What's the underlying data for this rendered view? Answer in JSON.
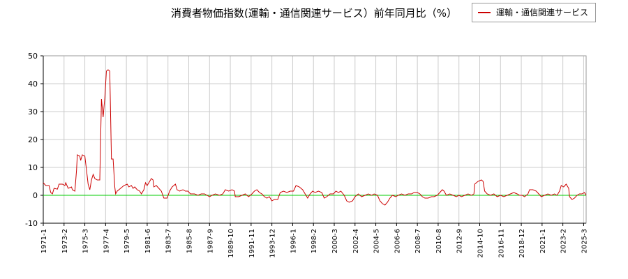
{
  "chart_data": {
    "type": "line",
    "title": "消費者物価指数(運輸・通信関連サービス）前年同月比（%）",
    "xlabel": "",
    "ylabel": "",
    "ylim": [
      -10,
      50
    ],
    "yticks": [
      -10,
      0,
      10,
      20,
      30,
      40,
      50
    ],
    "xlim": [
      "1971-1",
      "2025-6"
    ],
    "xticks": [
      "1971-1",
      "1973-2",
      "1975-3",
      "1977-4",
      "1979-5",
      "1981-6",
      "1983-7",
      "1985-8",
      "1987-9",
      "1989-10",
      "1991-11",
      "1993-12",
      "1996-1",
      "1998-2",
      "2000-3",
      "2002-4",
      "2004-5",
      "2006-6",
      "2008-7",
      "2010-8",
      "2012-9",
      "2014-10",
      "2016-11",
      "2018-12",
      "2021-1",
      "2023-2",
      "2025-3"
    ],
    "grid": true,
    "legend_position": "top-right",
    "reference_line": {
      "y": 0,
      "color": "#00cc00"
    },
    "series": [
      {
        "name": "運輸・通信関連サービス",
        "color": "#cc0000",
        "points": [
          [
            "1971-1",
            4.5
          ],
          [
            "1971-4",
            3.5
          ],
          [
            "1971-8",
            3.5
          ],
          [
            "1971-10",
            1.0
          ],
          [
            "1971-12",
            0.5
          ],
          [
            "1972-2",
            2.5
          ],
          [
            "1972-6",
            2.2
          ],
          [
            "1972-8",
            4.0
          ],
          [
            "1972-12",
            4.0
          ],
          [
            "1973-3",
            3.5
          ],
          [
            "1973-4",
            4.5
          ],
          [
            "1973-7",
            2.5
          ],
          [
            "1973-11",
            3.0
          ],
          [
            "1973-12",
            2.0
          ],
          [
            "1974-3",
            1.5
          ],
          [
            "1974-5",
            9.0
          ],
          [
            "1974-6",
            14.5
          ],
          [
            "1974-9",
            14.0
          ],
          [
            "1974-10",
            12.5
          ],
          [
            "1974-12",
            14.5
          ],
          [
            "1975-3",
            14.0
          ],
          [
            "1975-5",
            9.0
          ],
          [
            "1975-7",
            4.0
          ],
          [
            "1975-9",
            2.0
          ],
          [
            "1975-11",
            5.5
          ],
          [
            "1976-1",
            7.5
          ],
          [
            "1976-3",
            6.0
          ],
          [
            "1976-6",
            5.5
          ],
          [
            "1976-9",
            5.5
          ],
          [
            "1976-11",
            34.5
          ],
          [
            "1977-1",
            28.0
          ],
          [
            "1977-3",
            35.0
          ],
          [
            "1977-5",
            44.5
          ],
          [
            "1977-7",
            45.0
          ],
          [
            "1977-9",
            44.5
          ],
          [
            "1977-11",
            13.0
          ],
          [
            "1978-1",
            13.0
          ],
          [
            "1978-3",
            3.0
          ],
          [
            "1978-4",
            0.5
          ],
          [
            "1978-6",
            1.5
          ],
          [
            "1978-10",
            2.5
          ],
          [
            "1979-2",
            3.5
          ],
          [
            "1979-6",
            4.0
          ],
          [
            "1979-8",
            3.0
          ],
          [
            "1979-11",
            3.5
          ],
          [
            "1980-1",
            2.5
          ],
          [
            "1980-3",
            3.0
          ],
          [
            "1980-6",
            2.0
          ],
          [
            "1980-9",
            1.5
          ],
          [
            "1980-11",
            0.5
          ],
          [
            "1981-2",
            2.0
          ],
          [
            "1981-4",
            4.5
          ],
          [
            "1981-6",
            3.5
          ],
          [
            "1981-9",
            5.0
          ],
          [
            "1981-11",
            6.0
          ],
          [
            "1982-1",
            5.5
          ],
          [
            "1982-2",
            3.0
          ],
          [
            "1982-5",
            3.5
          ],
          [
            "1982-8",
            2.5
          ],
          [
            "1982-11",
            1.5
          ],
          [
            "1983-2",
            -1.0
          ],
          [
            "1983-6",
            -1.0
          ],
          [
            "1983-9",
            1.5
          ],
          [
            "1983-12",
            3.0
          ],
          [
            "1984-4",
            4.0
          ],
          [
            "1984-6",
            2.0
          ],
          [
            "1984-9",
            1.5
          ],
          [
            "1985-1",
            2.0
          ],
          [
            "1985-4",
            1.5
          ],
          [
            "1985-7",
            1.5
          ],
          [
            "1985-10",
            0.5
          ],
          [
            "1986-3",
            0.5
          ],
          [
            "1986-7",
            0.0
          ],
          [
            "1986-11",
            0.5
          ],
          [
            "1987-3",
            0.5
          ],
          [
            "1987-6",
            0.0
          ],
          [
            "1987-9",
            -0.5
          ],
          [
            "1987-12",
            0.0
          ],
          [
            "1988-4",
            0.5
          ],
          [
            "1988-9",
            0.0
          ],
          [
            "1989-1",
            0.5
          ],
          [
            "1989-4",
            2.0
          ],
          [
            "1989-8",
            1.5
          ],
          [
            "1989-12",
            2.0
          ],
          [
            "1990-3",
            1.5
          ],
          [
            "1990-4",
            -0.5
          ],
          [
            "1990-8",
            -0.5
          ],
          [
            "1990-12",
            0.0
          ],
          [
            "1991-4",
            0.5
          ],
          [
            "1991-8",
            -0.5
          ],
          [
            "1991-12",
            0.5
          ],
          [
            "1992-3",
            1.5
          ],
          [
            "1992-6",
            2.0
          ],
          [
            "1992-9",
            1.0
          ],
          [
            "1992-12",
            0.5
          ],
          [
            "1993-3",
            -0.5
          ],
          [
            "1993-6",
            -1.0
          ],
          [
            "1993-9",
            -0.5
          ],
          [
            "1993-12",
            -2.0
          ],
          [
            "1994-3",
            -1.5
          ],
          [
            "1994-7",
            -1.5
          ],
          [
            "1994-10",
            1.0
          ],
          [
            "1995-2",
            1.5
          ],
          [
            "1995-6",
            1.0
          ],
          [
            "1995-10",
            1.5
          ],
          [
            "1996-2",
            1.5
          ],
          [
            "1996-5",
            3.5
          ],
          [
            "1996-9",
            3.0
          ],
          [
            "1997-1",
            2.0
          ],
          [
            "1997-4",
            0.5
          ],
          [
            "1997-7",
            -1.0
          ],
          [
            "1997-10",
            0.5
          ],
          [
            "1998-1",
            1.5
          ],
          [
            "1998-4",
            1.0
          ],
          [
            "1998-8",
            1.5
          ],
          [
            "1998-12",
            1.0
          ],
          [
            "1999-3",
            -1.0
          ],
          [
            "1999-6",
            -0.5
          ],
          [
            "1999-10",
            0.5
          ],
          [
            "2000-2",
            0.5
          ],
          [
            "2000-5",
            1.5
          ],
          [
            "2000-8",
            1.0
          ],
          [
            "2000-11",
            1.5
          ],
          [
            "2001-3",
            0.0
          ],
          [
            "2001-6",
            -2.0
          ],
          [
            "2001-9",
            -2.5
          ],
          [
            "2002-1",
            -2.0
          ],
          [
            "2002-4",
            -0.5
          ],
          [
            "2002-8",
            0.5
          ],
          [
            "2002-12",
            -0.5
          ],
          [
            "2003-4",
            0.0
          ],
          [
            "2003-8",
            0.5
          ],
          [
            "2003-12",
            0.0
          ],
          [
            "2004-3",
            0.5
          ],
          [
            "2004-7",
            0.0
          ],
          [
            "2004-10",
            -2.0
          ],
          [
            "2005-1",
            -3.0
          ],
          [
            "2005-4",
            -3.5
          ],
          [
            "2005-7",
            -2.5
          ],
          [
            "2005-10",
            -1.0
          ],
          [
            "2006-1",
            0.0
          ],
          [
            "2006-5",
            -0.5
          ],
          [
            "2006-8",
            0.0
          ],
          [
            "2006-12",
            0.5
          ],
          [
            "2007-4",
            0.0
          ],
          [
            "2007-8",
            0.5
          ],
          [
            "2007-12",
            0.5
          ],
          [
            "2008-3",
            1.0
          ],
          [
            "2008-7",
            1.0
          ],
          [
            "2008-10",
            0.5
          ],
          [
            "2009-1",
            -0.5
          ],
          [
            "2009-4",
            -1.0
          ],
          [
            "2009-8",
            -1.0
          ],
          [
            "2009-12",
            -0.5
          ],
          [
            "2010-3",
            -0.5
          ],
          [
            "2010-7",
            0.0
          ],
          [
            "2010-10",
            1.0
          ],
          [
            "2011-1",
            2.0
          ],
          [
            "2011-3",
            1.5
          ],
          [
            "2011-6",
            0.0
          ],
          [
            "2011-10",
            0.5
          ],
          [
            "2012-2",
            0.0
          ],
          [
            "2012-6",
            -0.5
          ],
          [
            "2012-9",
            0.0
          ],
          [
            "2012-12",
            -0.5
          ],
          [
            "2013-4",
            0.0
          ],
          [
            "2013-8",
            0.5
          ],
          [
            "2013-12",
            0.0
          ],
          [
            "2014-3",
            0.5
          ],
          [
            "2014-4",
            4.0
          ],
          [
            "2014-8",
            5.0
          ],
          [
            "2014-12",
            5.5
          ],
          [
            "2015-2",
            5.0
          ],
          [
            "2015-4",
            1.5
          ],
          [
            "2015-7",
            0.5
          ],
          [
            "2015-11",
            0.0
          ],
          [
            "2016-3",
            0.5
          ],
          [
            "2016-7",
            -0.5
          ],
          [
            "2016-11",
            0.0
          ],
          [
            "2017-3",
            -0.5
          ],
          [
            "2017-7",
            0.0
          ],
          [
            "2017-11",
            0.5
          ],
          [
            "2018-3",
            1.0
          ],
          [
            "2018-7",
            0.5
          ],
          [
            "2018-10",
            0.0
          ],
          [
            "2019-1",
            0.0
          ],
          [
            "2019-4",
            -0.5
          ],
          [
            "2019-8",
            0.5
          ],
          [
            "2019-10",
            2.0
          ],
          [
            "2020-2",
            2.0
          ],
          [
            "2020-6",
            1.5
          ],
          [
            "2020-9",
            0.5
          ],
          [
            "2020-12",
            -0.5
          ],
          [
            "2021-4",
            0.0
          ],
          [
            "2021-8",
            0.5
          ],
          [
            "2021-12",
            0.0
          ],
          [
            "2022-4",
            0.5
          ],
          [
            "2022-7",
            0.0
          ],
          [
            "2022-10",
            1.5
          ],
          [
            "2022-12",
            3.5
          ],
          [
            "2023-3",
            3.0
          ],
          [
            "2023-6",
            4.0
          ],
          [
            "2023-9",
            2.5
          ],
          [
            "2023-10",
            -0.5
          ],
          [
            "2024-1",
            -1.5
          ],
          [
            "2024-4",
            -1.0
          ],
          [
            "2024-7",
            0.0
          ],
          [
            "2024-10",
            0.5
          ],
          [
            "2025-1",
            0.5
          ],
          [
            "2025-4",
            1.0
          ],
          [
            "2025-6",
            0.0
          ]
        ]
      }
    ]
  }
}
